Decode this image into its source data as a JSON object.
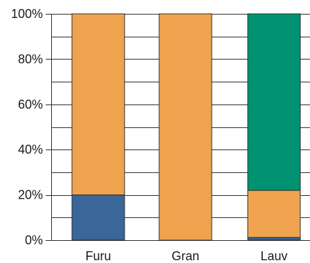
{
  "chart_data": {
    "type": "bar",
    "stacked": true,
    "categories": [
      "Furu",
      "Gran",
      "Lauv"
    ],
    "series": [
      {
        "color": "#3a6699",
        "values": [
          20,
          0,
          1.2
        ]
      },
      {
        "color": "#f0a34e",
        "values": [
          80,
          100,
          20.8
        ]
      },
      {
        "color": "#009271",
        "values": [
          0,
          0,
          78
        ]
      }
    ],
    "yticks": [
      "0%",
      "20%",
      "40%",
      "60%",
      "80%",
      "100%"
    ],
    "ylim": [
      0,
      100
    ],
    "grid": true,
    "title": "",
    "xlabel": "",
    "ylabel": ""
  }
}
